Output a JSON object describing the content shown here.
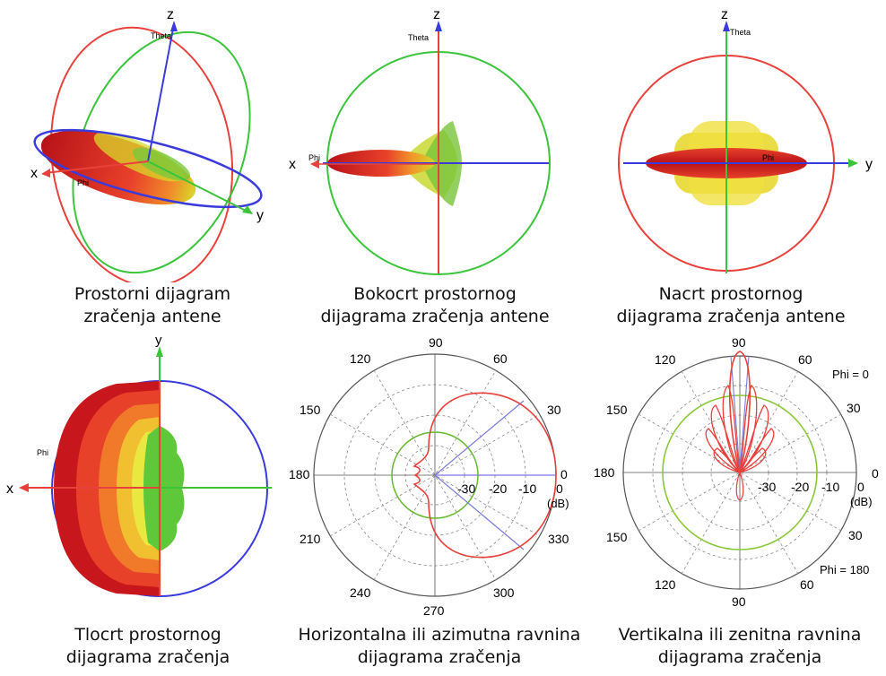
{
  "axes": {
    "x": "x",
    "y": "y",
    "z": "z",
    "theta": "Theta",
    "phi": "Phi"
  },
  "captions": {
    "p1": [
      "Prostorni dijagram",
      "zračenja antene"
    ],
    "p2": [
      "Bokocrt prostornog",
      "dijagrama zračenja antene"
    ],
    "p3": [
      "Nacrt prostornog",
      "dijagrama zračenja antene"
    ],
    "p4": [
      "Tlocrt prostornog",
      "dijagrama zračenja"
    ],
    "p5": [
      "Horizontalna ili azimutna ravnina",
      "dijagrama zračenja"
    ],
    "p6": [
      "Vertikalna ili zenitna ravnina",
      "dijagrama zračenja"
    ]
  },
  "polar_h": {
    "angles": [
      "0",
      "30",
      "60",
      "90",
      "120",
      "150",
      "180",
      "210",
      "240",
      "270",
      "300",
      "330"
    ],
    "radial": [
      "-30",
      "-20",
      "-10",
      "0"
    ],
    "unit": "(dB)"
  },
  "polar_v": {
    "angles_top": [
      "90",
      "60",
      "30",
      "0",
      "30",
      "60",
      "90",
      "120",
      "150",
      "180",
      "150",
      "120"
    ],
    "radial": [
      "-30",
      "-20",
      "-10",
      "0"
    ],
    "unit": "(dB)",
    "phi_top": "Phi = 0",
    "phi_bottom": "Phi = 180"
  },
  "colors": {
    "red": "#e8413c",
    "green": "#3cc43c",
    "blue": "#3b3bdb",
    "lobe_dark": "#c4161c"
  }
}
